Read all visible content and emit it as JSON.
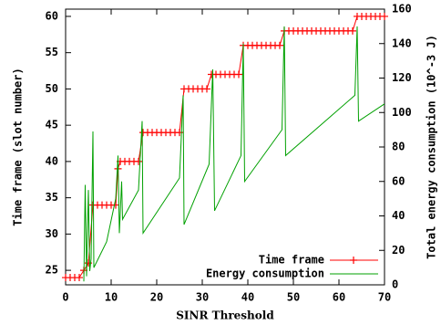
{
  "chart_data": {
    "type": "line",
    "xlabel": "SINR Threshold",
    "ylabel": "Time frame (slot number)",
    "y2label": "Total energy consumption (10^-3 J)",
    "xlim": [
      0,
      70
    ],
    "xticks": [
      0,
      10,
      20,
      30,
      40,
      50,
      60,
      70
    ],
    "ylim": [
      23,
      61
    ],
    "yticks": [
      25,
      30,
      35,
      40,
      45,
      50,
      55,
      60
    ],
    "y2lim": [
      0,
      160
    ],
    "y2ticks": [
      0,
      20,
      40,
      60,
      80,
      100,
      120,
      140,
      160
    ],
    "legend": "lower right",
    "series": [
      {
        "name": "Time frame",
        "color": "#ff0000",
        "x": [
          0,
          1,
          2,
          3,
          4,
          5,
          6,
          7,
          8,
          9,
          10,
          11,
          11.5,
          12,
          13,
          14,
          15,
          16,
          17,
          18,
          19,
          20,
          21,
          22,
          23,
          24,
          25,
          26,
          27,
          28,
          29,
          30,
          31,
          32,
          33,
          34,
          35,
          36,
          37,
          38,
          39,
          40,
          41,
          42,
          43,
          44,
          45,
          46,
          47,
          48,
          49,
          50,
          51,
          52,
          53,
          54,
          55,
          56,
          57,
          58,
          59,
          60,
          61,
          62,
          63,
          64,
          65,
          66,
          67,
          68,
          69,
          70
        ],
        "values": [
          24,
          24,
          24,
          24,
          25,
          26,
          34,
          34,
          34,
          34,
          34,
          34,
          39,
          40,
          40,
          40,
          40,
          40,
          44,
          44,
          44,
          44,
          44,
          44,
          44,
          44,
          44,
          50,
          50,
          50,
          50,
          50,
          50,
          52,
          52,
          52,
          52,
          52,
          52,
          52,
          56,
          56,
          56,
          56,
          56,
          56,
          56,
          56,
          56,
          58,
          58,
          58,
          58,
          58,
          58,
          58,
          58,
          58,
          58,
          58,
          58,
          58,
          58,
          58,
          58,
          60,
          60,
          60,
          60,
          60,
          60,
          60
        ]
      },
      {
        "name": "Energy consumption",
        "color": "#00a000",
        "axis": "y2",
        "x": [
          4,
          4.3,
          4.6,
          5,
          5.3,
          5.6,
          6,
          6.2,
          9,
          11,
          11.5,
          11.8,
          12.3,
          12.5,
          16,
          16.8,
          17,
          25,
          25.8,
          26,
          31.5,
          32.3,
          32.7,
          38.5,
          39,
          39.3,
          47.5,
          48,
          48.3,
          63.5,
          64,
          64.3,
          70
        ],
        "values": [
          2,
          58,
          5,
          55,
          8,
          15,
          89,
          10,
          25,
          50,
          75,
          30,
          60,
          38,
          55,
          95,
          30,
          62,
          110,
          35,
          70,
          125,
          43,
          75,
          140,
          60,
          90,
          150,
          75,
          110,
          150,
          95,
          105
        ]
      }
    ]
  }
}
